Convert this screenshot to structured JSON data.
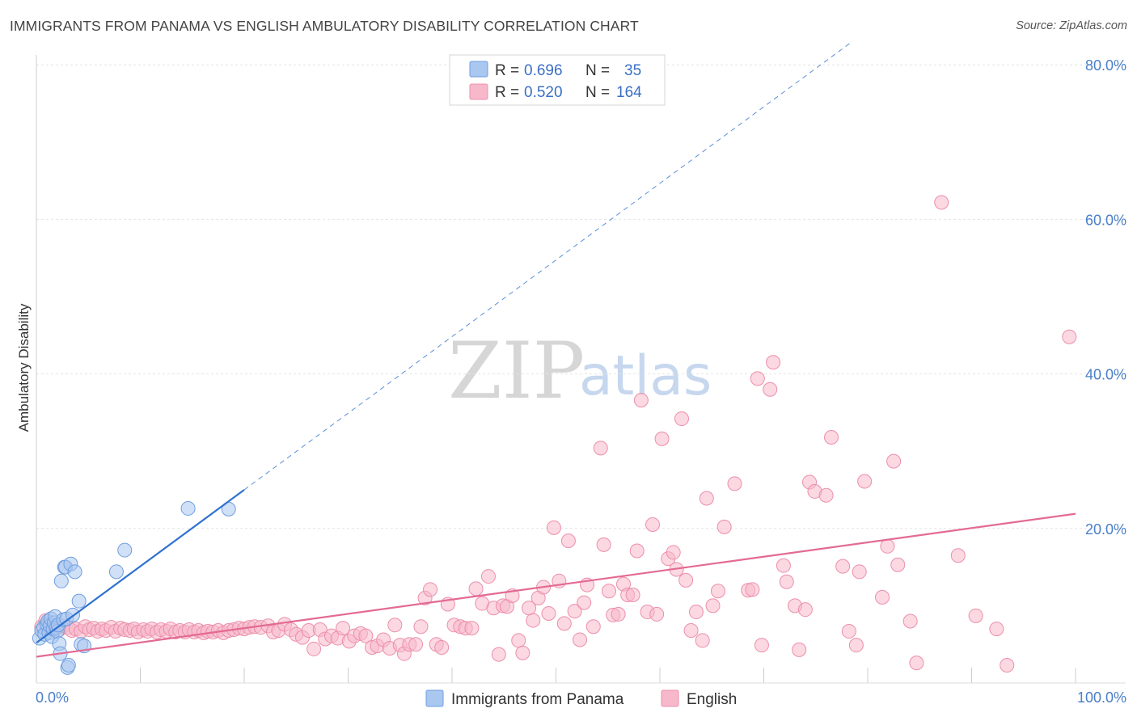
{
  "header": {
    "title": "IMMIGRANTS FROM PANAMA VS ENGLISH AMBULATORY DISABILITY CORRELATION CHART",
    "source": "Source: ZipAtlas.com"
  },
  "watermark": {
    "zip": "ZIP",
    "atlas": "atlas"
  },
  "legend": {
    "rows": [
      {
        "swatch": "#a9c7ef",
        "r_label": "R =",
        "r_value": "0.696",
        "n_label": "N =",
        "n_value": "35"
      },
      {
        "swatch": "#f7b8cb",
        "r_label": "R =",
        "r_value": "0.520",
        "n_label": "N =",
        "n_value": "164"
      }
    ]
  },
  "colors": {
    "blue_fill": "#a9c7ef",
    "blue_stroke": "#6f9ee0",
    "blue_line": "#2f72d0",
    "pink_fill": "#f7b8cb",
    "pink_stroke": "#ec8fab",
    "pink_line": "#e36a93"
  },
  "chart_data": {
    "type": "scatter",
    "title": "IMMIGRANTS FROM PANAMA VS ENGLISH AMBULATORY DISABILITY CORRELATION CHART",
    "xlabel": "",
    "ylabel": "Ambulatory Disability",
    "xlim": [
      0,
      100
    ],
    "ylim": [
      0,
      83
    ],
    "x_tick_labels": [
      "0.0%",
      "100.0%"
    ],
    "y_ticks": [
      20,
      40,
      60,
      80
    ],
    "y_tick_labels": [
      "20.0%",
      "40.0%",
      "60.0%",
      "80.0%"
    ],
    "grid": true,
    "legend_position": "top-center",
    "series": [
      {
        "name": "Immigrants from Panama",
        "R": 0.696,
        "N": 35,
        "trend": {
          "x0": 0,
          "y0": 5.2,
          "x1": 20,
          "y1": 25.0,
          "dashed_to_x": 78.5,
          "dashed_to_y": 83.0
        },
        "points": [
          [
            0.3,
            5.8
          ],
          [
            0.5,
            6.8
          ],
          [
            0.7,
            7.2
          ],
          [
            0.8,
            6.3
          ],
          [
            1.0,
            7.6
          ],
          [
            1.1,
            8.0
          ],
          [
            1.2,
            6.5
          ],
          [
            1.3,
            7.4
          ],
          [
            1.4,
            8.3
          ],
          [
            1.5,
            6.0
          ],
          [
            1.6,
            7.0
          ],
          [
            1.7,
            7.8
          ],
          [
            1.8,
            8.6
          ],
          [
            1.9,
            7.1
          ],
          [
            2.0,
            6.7
          ],
          [
            2.1,
            7.5
          ],
          [
            2.2,
            5.1
          ],
          [
            2.3,
            3.8
          ],
          [
            2.4,
            13.2
          ],
          [
            2.6,
            8.2
          ],
          [
            2.7,
            15.0
          ],
          [
            2.8,
            15.0
          ],
          [
            2.9,
            8.3
          ],
          [
            3.0,
            2.0
          ],
          [
            3.1,
            2.3
          ],
          [
            3.3,
            15.4
          ],
          [
            3.5,
            8.8
          ],
          [
            3.7,
            14.4
          ],
          [
            4.1,
            10.6
          ],
          [
            4.3,
            5.0
          ],
          [
            4.6,
            4.8
          ],
          [
            7.7,
            14.4
          ],
          [
            8.5,
            17.2
          ],
          [
            14.6,
            22.6
          ],
          [
            18.5,
            22.5
          ]
        ]
      },
      {
        "name": "English",
        "R": 0.52,
        "N": 164,
        "trend": {
          "x0": 0,
          "y0": 3.4,
          "x1": 100,
          "y1": 21.9
        },
        "points": [
          [
            0.5,
            7.3
          ],
          [
            0.9,
            8.1
          ],
          [
            1.3,
            7.6
          ],
          [
            1.8,
            7.1
          ],
          [
            2.2,
            6.9
          ],
          [
            2.6,
            7.4
          ],
          [
            3.0,
            7.2
          ],
          [
            3.4,
            6.8
          ],
          [
            3.8,
            7.0
          ],
          [
            4.3,
            6.7
          ],
          [
            4.7,
            7.3
          ],
          [
            5.1,
            6.9
          ],
          [
            5.5,
            7.1
          ],
          [
            5.9,
            6.7
          ],
          [
            6.3,
            7.0
          ],
          [
            6.7,
            6.8
          ],
          [
            7.2,
            7.2
          ],
          [
            7.6,
            6.7
          ],
          [
            8.1,
            7.1
          ],
          [
            8.5,
            6.9
          ],
          [
            9.0,
            6.8
          ],
          [
            9.4,
            7.0
          ],
          [
            9.8,
            6.6
          ],
          [
            10.3,
            6.9
          ],
          [
            10.7,
            6.7
          ],
          [
            11.1,
            7.0
          ],
          [
            11.6,
            6.6
          ],
          [
            12.0,
            6.9
          ],
          [
            12.5,
            6.7
          ],
          [
            12.9,
            7.0
          ],
          [
            13.4,
            6.6
          ],
          [
            13.8,
            6.8
          ],
          [
            14.3,
            6.6
          ],
          [
            14.7,
            6.9
          ],
          [
            15.2,
            6.6
          ],
          [
            15.6,
            6.8
          ],
          [
            16.1,
            6.5
          ],
          [
            16.5,
            6.7
          ],
          [
            17.0,
            6.6
          ],
          [
            17.5,
            6.8
          ],
          [
            18.0,
            6.5
          ],
          [
            18.5,
            6.8
          ],
          [
            19.0,
            6.9
          ],
          [
            19.5,
            7.1
          ],
          [
            20.0,
            7.0
          ],
          [
            20.5,
            7.2
          ],
          [
            21.0,
            7.3
          ],
          [
            21.6,
            7.2
          ],
          [
            22.3,
            7.4
          ],
          [
            22.8,
            6.6
          ],
          [
            23.3,
            6.8
          ],
          [
            23.9,
            7.6
          ],
          [
            24.5,
            6.9
          ],
          [
            25.0,
            6.3
          ],
          [
            25.6,
            5.9
          ],
          [
            26.2,
            6.8
          ],
          [
            26.7,
            4.4
          ],
          [
            27.3,
            6.9
          ],
          [
            27.8,
            5.7
          ],
          [
            28.4,
            6.1
          ],
          [
            29.0,
            5.8
          ],
          [
            29.5,
            7.1
          ],
          [
            30.1,
            5.4
          ],
          [
            30.6,
            6.1
          ],
          [
            31.2,
            6.4
          ],
          [
            31.7,
            6.1
          ],
          [
            32.3,
            4.6
          ],
          [
            32.8,
            4.8
          ],
          [
            33.4,
            5.6
          ],
          [
            34.0,
            4.5
          ],
          [
            34.5,
            7.5
          ],
          [
            35.0,
            4.9
          ],
          [
            35.4,
            3.8
          ],
          [
            35.9,
            5.0
          ],
          [
            36.5,
            5.0
          ],
          [
            37.0,
            7.3
          ],
          [
            37.4,
            11.0
          ],
          [
            37.9,
            12.1
          ],
          [
            38.5,
            5.0
          ],
          [
            39.0,
            4.6
          ],
          [
            39.6,
            10.2
          ],
          [
            40.2,
            7.5
          ],
          [
            40.8,
            7.3
          ],
          [
            41.3,
            7.1
          ],
          [
            41.9,
            7.1
          ],
          [
            42.3,
            12.2
          ],
          [
            42.9,
            10.3
          ],
          [
            43.5,
            13.8
          ],
          [
            44.0,
            9.7
          ],
          [
            44.5,
            3.7
          ],
          [
            44.9,
            10.0
          ],
          [
            45.3,
            9.9
          ],
          [
            45.8,
            11.3
          ],
          [
            46.4,
            5.5
          ],
          [
            46.8,
            3.9
          ],
          [
            47.4,
            9.7
          ],
          [
            47.8,
            8.1
          ],
          [
            48.3,
            11.0
          ],
          [
            48.8,
            12.4
          ],
          [
            49.3,
            9.0
          ],
          [
            49.8,
            20.1
          ],
          [
            50.3,
            13.2
          ],
          [
            50.8,
            7.7
          ],
          [
            51.2,
            18.4
          ],
          [
            51.8,
            9.3
          ],
          [
            52.3,
            5.6
          ],
          [
            52.7,
            10.4
          ],
          [
            53.0,
            12.7
          ],
          [
            53.6,
            7.3
          ],
          [
            54.3,
            30.4
          ],
          [
            54.6,
            17.9
          ],
          [
            55.1,
            11.9
          ],
          [
            55.5,
            8.8
          ],
          [
            56.0,
            8.9
          ],
          [
            56.5,
            12.8
          ],
          [
            56.9,
            11.4
          ],
          [
            57.4,
            11.4
          ],
          [
            57.8,
            17.1
          ],
          [
            58.2,
            36.6
          ],
          [
            58.8,
            9.2
          ],
          [
            59.3,
            20.5
          ],
          [
            59.7,
            8.9
          ],
          [
            60.2,
            31.6
          ],
          [
            60.8,
            16.1
          ],
          [
            61.3,
            16.9
          ],
          [
            61.6,
            14.7
          ],
          [
            62.1,
            34.2
          ],
          [
            62.5,
            13.3
          ],
          [
            63.0,
            6.8
          ],
          [
            63.5,
            9.2
          ],
          [
            64.1,
            5.5
          ],
          [
            64.5,
            23.9
          ],
          [
            65.1,
            10.0
          ],
          [
            65.6,
            11.9
          ],
          [
            66.2,
            20.2
          ],
          [
            67.2,
            25.8
          ],
          [
            68.5,
            12.0
          ],
          [
            68.9,
            12.1
          ],
          [
            69.4,
            39.4
          ],
          [
            69.8,
            4.9
          ],
          [
            70.6,
            38.0
          ],
          [
            70.9,
            41.5
          ],
          [
            71.9,
            15.2
          ],
          [
            72.2,
            13.1
          ],
          [
            73.0,
            10.0
          ],
          [
            73.4,
            4.3
          ],
          [
            74.0,
            9.5
          ],
          [
            74.4,
            26.0
          ],
          [
            74.9,
            24.8
          ],
          [
            76.0,
            24.3
          ],
          [
            76.5,
            31.8
          ],
          [
            77.6,
            15.1
          ],
          [
            78.2,
            6.7
          ],
          [
            78.9,
            4.9
          ],
          [
            79.2,
            14.4
          ],
          [
            79.7,
            26.1
          ],
          [
            81.4,
            11.1
          ],
          [
            81.9,
            17.7
          ],
          [
            82.5,
            28.7
          ],
          [
            82.9,
            15.3
          ],
          [
            84.1,
            8.0
          ],
          [
            84.7,
            2.6
          ],
          [
            87.1,
            62.2
          ],
          [
            88.7,
            16.5
          ],
          [
            90.4,
            8.7
          ],
          [
            92.4,
            7.0
          ],
          [
            93.4,
            2.3
          ],
          [
            99.4,
            44.8
          ]
        ]
      }
    ]
  },
  "bottom_legend": [
    {
      "label": "Immigrants from Panama",
      "swatch": "#a9c7ef"
    },
    {
      "label": "English",
      "swatch": "#f7b8cb"
    }
  ]
}
